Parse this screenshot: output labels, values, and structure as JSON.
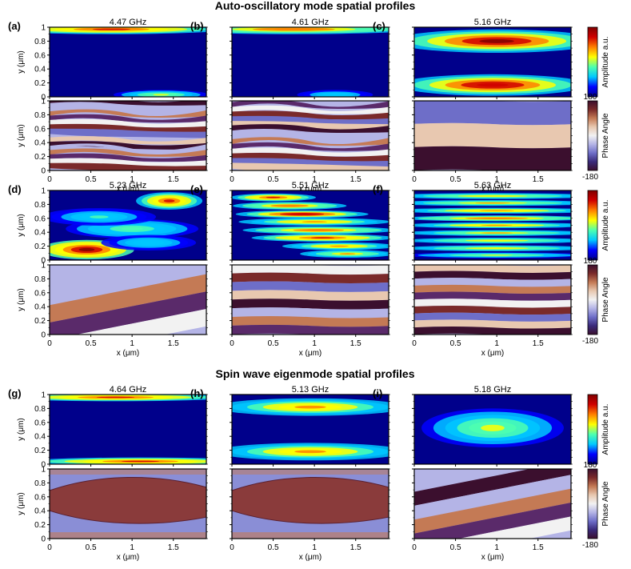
{
  "chart_data": {
    "type": "heatmap",
    "section_titles": [
      "Auto-oscillatory mode spatial profiles",
      "Spin wave eigenmode spatial profiles"
    ],
    "x_axis": {
      "label": "x (μm)",
      "range": [
        0,
        1.9
      ],
      "ticks": [
        "0",
        "0.5",
        "1",
        "1.5"
      ]
    },
    "y_axis": {
      "label": "y (μm)",
      "range": [
        0,
        1
      ],
      "ticks": [
        "0",
        "0.2",
        "0.4",
        "0.6",
        "0.8",
        "1"
      ]
    },
    "amplitude_colorbar": {
      "label": "Amplitude a.u.",
      "colors": [
        "#00008b",
        "#0000ff",
        "#00c8ff",
        "#4dffb0",
        "#ffff00",
        "#ff8000",
        "#d00000",
        "#800000"
      ]
    },
    "phase_colorbar": {
      "label": "Phase Angle",
      "max": "180",
      "min": "-180",
      "colors": [
        "#3b0f2e",
        "#3a2a7a",
        "#6e6ec8",
        "#b4b4e6",
        "#f2f2f2",
        "#e8c8b0",
        "#c47a55",
        "#7a2a2a",
        "#3b0f2e"
      ]
    },
    "panels": [
      {
        "letter": "(a)",
        "freq": "4.47 GHz",
        "amp_blobs": [
          [
            0.75,
            0.97,
            1.2,
            0.05,
            0.8
          ],
          [
            1.35,
            0.03,
            0.5,
            0.05,
            0.5
          ]
        ],
        "phase_kind": "noisy",
        "phase_stripes": 14
      },
      {
        "letter": "(b)",
        "freq": "4.61 GHz",
        "amp_blobs": [
          [
            0.75,
            0.97,
            1.3,
            0.05,
            0.75
          ],
          [
            1.25,
            0.03,
            0.4,
            0.05,
            0.35
          ]
        ],
        "phase_kind": "noisy",
        "phase_stripes": 13
      },
      {
        "letter": "(c)",
        "freq": "5.16 GHz",
        "amp_blobs": [
          [
            1.0,
            0.8,
            1.1,
            0.12,
            0.95
          ],
          [
            0.95,
            0.17,
            1.0,
            0.11,
            0.9
          ]
        ],
        "phase_kind": "bands",
        "phase_stripes": 3
      },
      {
        "letter": "(d)",
        "freq": "5.23 GHz",
        "amp_blobs": [
          [
            0.45,
            0.15,
            0.5,
            0.1,
            1.0
          ],
          [
            1.45,
            0.85,
            0.35,
            0.09,
            0.85
          ],
          [
            1.0,
            0.45,
            0.7,
            0.1,
            0.45
          ],
          [
            0.6,
            0.62,
            0.6,
            0.09,
            0.4
          ],
          [
            1.2,
            0.25,
            0.5,
            0.08,
            0.35
          ]
        ],
        "phase_kind": "tilted",
        "phase_stripes": 4
      },
      {
        "letter": "(e)",
        "freq": "5.51 GHz",
        "amp_blobs": [
          [
            0.5,
            0.9,
            0.45,
            0.04,
            0.85
          ],
          [
            0.7,
            0.78,
            0.6,
            0.04,
            0.75
          ],
          [
            0.85,
            0.66,
            0.7,
            0.04,
            0.9
          ],
          [
            1.0,
            0.55,
            0.8,
            0.04,
            0.7
          ],
          [
            1.05,
            0.43,
            0.8,
            0.04,
            0.75
          ],
          [
            1.1,
            0.32,
            0.75,
            0.04,
            0.85
          ],
          [
            1.3,
            0.2,
            0.6,
            0.04,
            0.7
          ],
          [
            1.4,
            0.09,
            0.5,
            0.04,
            0.65
          ]
        ],
        "phase_kind": "bands",
        "phase_stripes": 8
      },
      {
        "letter": "(f)",
        "freq": "5.63 GHz",
        "amp_blobs": [
          [
            0.95,
            0.92,
            1.1,
            0.03,
            0.6
          ],
          [
            0.95,
            0.82,
            1.1,
            0.03,
            0.65
          ],
          [
            1.0,
            0.71,
            1.1,
            0.03,
            0.7
          ],
          [
            1.0,
            0.6,
            1.0,
            0.03,
            0.75
          ],
          [
            1.0,
            0.5,
            1.0,
            0.03,
            0.7
          ],
          [
            1.0,
            0.39,
            1.0,
            0.03,
            0.65
          ],
          [
            1.0,
            0.28,
            1.0,
            0.03,
            0.6
          ],
          [
            1.0,
            0.17,
            1.0,
            0.03,
            0.6
          ],
          [
            1.0,
            0.07,
            1.0,
            0.03,
            0.55
          ]
        ],
        "phase_kind": "bands",
        "phase_stripes": 10
      },
      {
        "letter": "(g)",
        "freq": "4.64 GHz",
        "amp_blobs": [
          [
            0.8,
            0.96,
            1.2,
            0.04,
            0.85
          ],
          [
            1.1,
            0.04,
            1.2,
            0.04,
            0.8
          ]
        ],
        "phase_kind": "lens",
        "phase_stripes": 1
      },
      {
        "letter": "(h)",
        "freq": "5.13 GHz",
        "amp_blobs": [
          [
            0.95,
            0.82,
            1.0,
            0.09,
            0.7
          ],
          [
            0.95,
            0.18,
            1.0,
            0.09,
            0.7
          ]
        ],
        "phase_kind": "lens",
        "phase_stripes": 1
      },
      {
        "letter": "(i)",
        "freq": "5.18 GHz",
        "amp_blobs": [
          [
            0.95,
            0.52,
            0.75,
            0.2,
            0.55
          ]
        ],
        "phase_kind": "tilted",
        "phase_stripes": 5
      }
    ]
  }
}
